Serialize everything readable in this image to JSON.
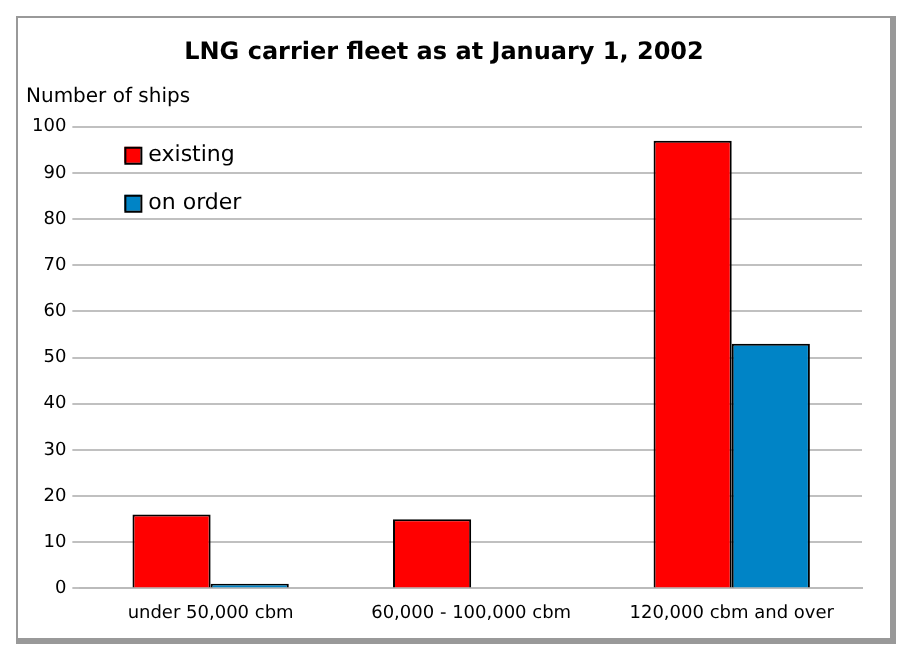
{
  "chart_data": {
    "type": "bar",
    "title": "LNG carrier fleet as at January 1, 2002",
    "ylabel": "Number of ships",
    "categories": [
      "under 50,000 cbm",
      "60,000 - 100,000 cbm",
      "120,000 cbm and over"
    ],
    "series": [
      {
        "name": "existing",
        "color": "#ff0000",
        "values": [
          16,
          15,
          97
        ]
      },
      {
        "name": "on order",
        "color": "#0084c6",
        "values": [
          1,
          0,
          53
        ]
      }
    ],
    "ylim": [
      0,
      100
    ],
    "yticks": [
      0,
      10,
      20,
      30,
      40,
      50,
      60,
      70,
      80,
      90,
      100
    ],
    "grid": "y",
    "legend": "top left"
  }
}
